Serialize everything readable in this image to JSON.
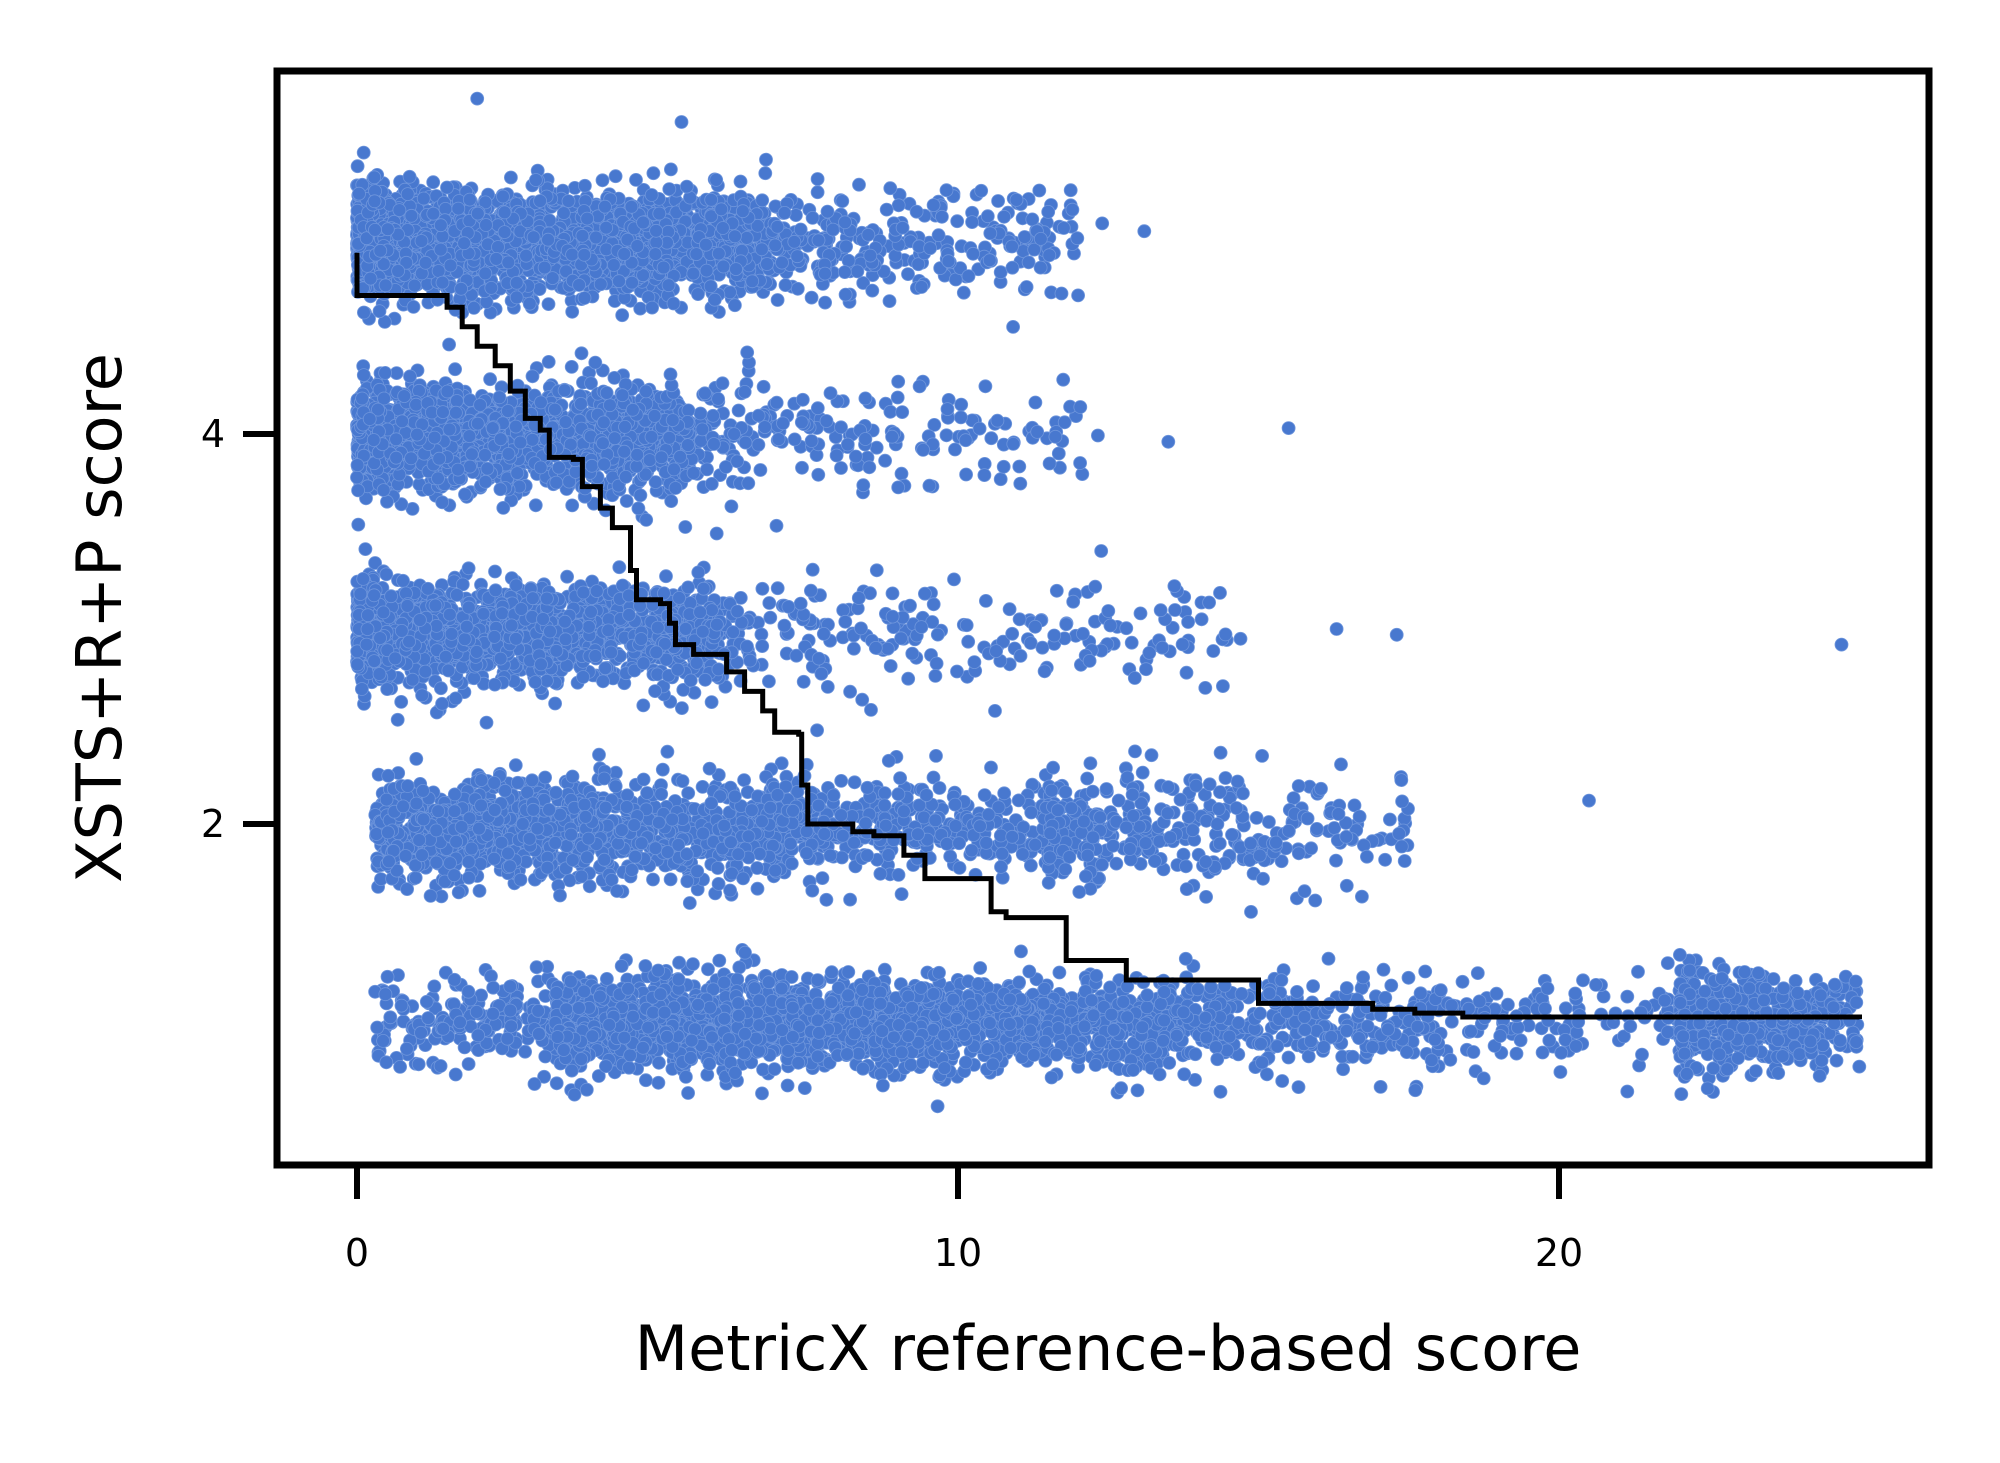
{
  "chart_data": {
    "type": "scatter",
    "title": "",
    "xlabel": "MetricX reference-based score",
    "ylabel": "XSTS+R+P score",
    "xlim": [
      -1.3,
      26.2
    ],
    "ylim": [
      0.25,
      5.86
    ],
    "x_ticks": [
      {
        "value": 0,
        "label": "0"
      },
      {
        "value": 10,
        "label": "10"
      },
      {
        "value": 20,
        "label": "20"
      }
    ],
    "y_ticks": [
      {
        "value": 2,
        "label": "2"
      },
      {
        "value": 4,
        "label": "4"
      }
    ],
    "grid": false,
    "legend": null,
    "colors": {
      "points": "#4878CF",
      "step_line": "#000000",
      "axes": "#000000",
      "background": "#ffffff"
    },
    "series": [
      {
        "name": "segments",
        "kind": "scatter",
        "description": "Individual segment scores; human scores cluster at integer levels 1-5 with jitter",
        "clusters": [
          {
            "y_level": 5,
            "y_spread": 0.27,
            "x_min": 0.0,
            "x_dense_max": 6.5,
            "x_sparse_max": 12.0,
            "count": 2600
          },
          {
            "y_level": 4,
            "y_spread": 0.26,
            "x_min": 0.0,
            "x_dense_max": 5.5,
            "x_sparse_max": 12.5,
            "count": 1700
          },
          {
            "y_level": 3,
            "y_spread": 0.26,
            "x_min": 0.0,
            "x_dense_max": 6.0,
            "x_sparse_max": 14.5,
            "count": 1700
          },
          {
            "y_level": 2,
            "y_spread": 0.26,
            "x_min": 0.3,
            "x_dense_max": 11.5,
            "x_sparse_max": 17.5,
            "count": 1900
          },
          {
            "y_level": 1,
            "y_spread": 0.23,
            "x_min": 0.3,
            "x_dense_max": 22.0,
            "x_sparse_max": 25.0,
            "count": 3200
          }
        ],
        "outliers": [
          {
            "x": 24.7,
            "y": 2.92
          },
          {
            "x": 12.4,
            "y": 5.08
          },
          {
            "x": 13.1,
            "y": 5.04
          },
          {
            "x": 13.5,
            "y": 3.96
          },
          {
            "x": 15.5,
            "y": 4.03
          },
          {
            "x": 20.5,
            "y": 2.12
          },
          {
            "x": 13.6,
            "y": 3.22
          },
          {
            "x": 16.3,
            "y": 3.0
          },
          {
            "x": 17.3,
            "y": 2.97
          },
          {
            "x": 14.7,
            "y": 2.95
          },
          {
            "x": 5.4,
            "y": 5.6
          },
          {
            "x": 2.0,
            "y": 5.72
          }
        ]
      },
      {
        "name": "isotonic fit",
        "kind": "step",
        "x": [
          0,
          0,
          1.35,
          1.5,
          1.75,
          2.0,
          2.3,
          2.55,
          2.8,
          3.05,
          3.2,
          3.6,
          3.75,
          4.0,
          4.05,
          4.25,
          4.5,
          4.55,
          4.65,
          5.05,
          5.2,
          5.3,
          5.6,
          6.0,
          6.15,
          6.45,
          6.75,
          6.95,
          7.35,
          7.4,
          7.5,
          8.0,
          8.25,
          8.6,
          8.99,
          9.1,
          9.45,
          10.5,
          10.55,
          10.8,
          11.75,
          11.8,
          12.75,
          12.8,
          14.7,
          15.0,
          16.9,
          17.6,
          18.4,
          25.0
        ],
        "y": [
          4.93,
          4.71,
          4.71,
          4.65,
          4.55,
          4.45,
          4.35,
          4.22,
          4.08,
          4.02,
          3.88,
          3.87,
          3.73,
          3.73,
          3.62,
          3.52,
          3.52,
          3.3,
          3.15,
          3.13,
          3.03,
          2.92,
          2.87,
          2.87,
          2.78,
          2.68,
          2.58,
          2.47,
          2.46,
          2.2,
          2.0,
          2.0,
          1.96,
          1.94,
          1.94,
          1.84,
          1.72,
          1.72,
          1.55,
          1.52,
          1.52,
          1.3,
          1.3,
          1.2,
          1.2,
          1.08,
          1.05,
          1.03,
          1.01,
          1.0
        ]
      }
    ]
  },
  "axes": {
    "x_label": "MetricX reference-based score",
    "y_label": "XSTS+R+P score",
    "x_tick_labels": [
      "0",
      "10",
      "20"
    ],
    "y_tick_labels": [
      "2",
      "4"
    ]
  }
}
